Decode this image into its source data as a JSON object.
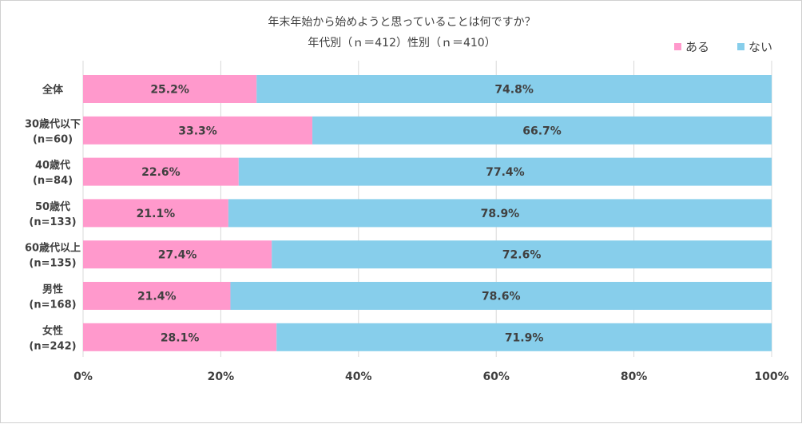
{
  "chart_data": {
    "type": "bar",
    "orientation": "horizontal",
    "stacked": true,
    "title": "年末年始から始めようと思っていることは何ですか？",
    "subtitle": "年代別（ｎ＝412）性別（ｎ＝410）",
    "categories": [
      {
        "label": "全体",
        "sublabel": ""
      },
      {
        "label": "30歳代以下",
        "sublabel": "(n=60)"
      },
      {
        "label": "40歳代",
        "sublabel": "(n=84)"
      },
      {
        "label": "50歳代",
        "sublabel": "(n=133)"
      },
      {
        "label": "60歳代以上",
        "sublabel": "(n=135)"
      },
      {
        "label": "男性",
        "sublabel": "(n=168)"
      },
      {
        "label": "女性",
        "sublabel": "(n=242)"
      }
    ],
    "series": [
      {
        "name": "ある",
        "color": "#ff99cc",
        "values": [
          25.2,
          33.3,
          22.6,
          21.1,
          27.4,
          21.4,
          28.1
        ],
        "labels": [
          "25.2%",
          "33.3%",
          "22.6%",
          "21.1%",
          "27.4%",
          "21.4%",
          "28.1%"
        ]
      },
      {
        "name": "ない",
        "color": "#87ceeb",
        "values": [
          74.8,
          66.7,
          77.4,
          78.9,
          72.6,
          78.6,
          71.9
        ],
        "labels": [
          "74.8%",
          "66.7%",
          "77.4%",
          "78.9%",
          "72.6%",
          "78.6%",
          "71.9%"
        ]
      }
    ],
    "xlim": [
      0,
      100
    ],
    "xticks": [
      0,
      20,
      40,
      60,
      80,
      100
    ],
    "xtick_labels": [
      "0%",
      "20%",
      "40%",
      "60%",
      "80%",
      "100%"
    ],
    "grid": true,
    "legend_position": "top-right"
  }
}
